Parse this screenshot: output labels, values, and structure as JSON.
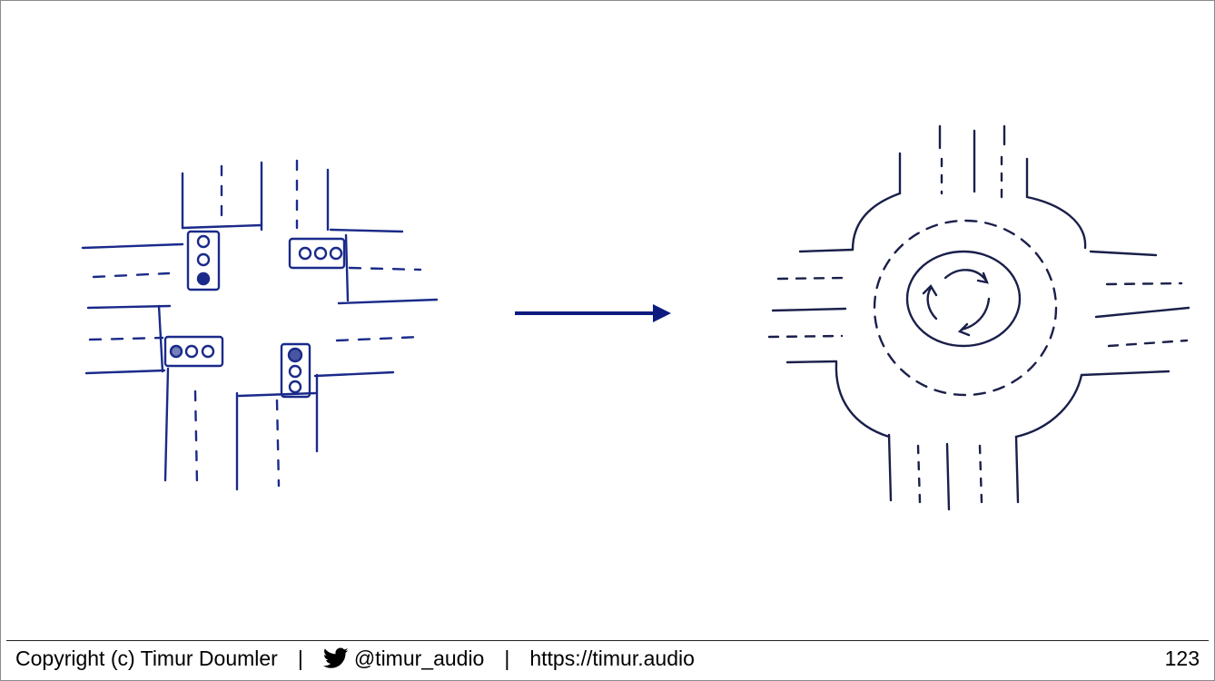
{
  "slide": {
    "footer": {
      "copyright": "Copyright (c) Timur Doumler",
      "separator": "|",
      "twitter_handle": "@timur_audio",
      "website": "https://timur.audio"
    },
    "page_number": "123",
    "icons": {
      "twitter": "twitter-bird-icon"
    },
    "colors": {
      "ink": "#1a2a8a",
      "arrow": "#0d1a80",
      "roundabout_ink": "#1a1f4a"
    }
  }
}
